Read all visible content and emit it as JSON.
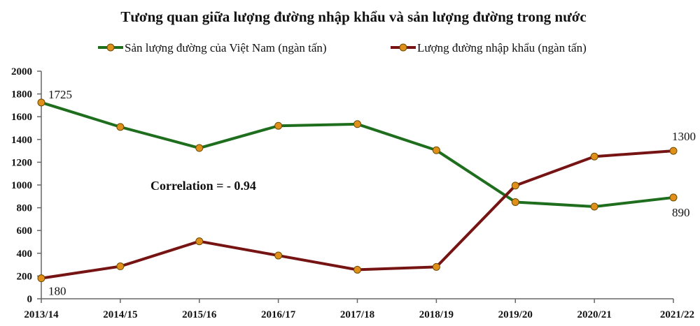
{
  "chart_data": {
    "type": "line",
    "title": "Tương quan  giữa lượng đường nhập khẩu và sản lượng đường trong nước",
    "xlabel": "",
    "ylabel": "",
    "categories": [
      "2013/14",
      "2014/15",
      "2015/16",
      "2016/17",
      "2017/18",
      "2018/19",
      "2019/20",
      "2020/21",
      "2021/22"
    ],
    "ylim": [
      0,
      2000
    ],
    "yticks": [
      0,
      200,
      400,
      600,
      800,
      1000,
      1200,
      1400,
      1600,
      1800,
      2000
    ],
    "grid": false,
    "legend_position": "top",
    "series": [
      {
        "name": "Sản lượng  đường của Việt Nam (ngàn tấn)",
        "color": "#1e6e1e",
        "marker_color": "#e0901a",
        "values": [
          1725,
          1510,
          1325,
          1520,
          1535,
          1305,
          850,
          810,
          890
        ]
      },
      {
        "name": "Lượng  đường nhập khẩu (ngàn tấn)",
        "color": "#761414",
        "marker_color": "#e0901a",
        "values": [
          180,
          285,
          505,
          380,
          255,
          280,
          995,
          1250,
          1300
        ]
      }
    ],
    "data_labels": [
      {
        "series": 0,
        "index": 0,
        "text": "1725"
      },
      {
        "series": 1,
        "index": 0,
        "text": "180"
      },
      {
        "series": 1,
        "index": 8,
        "text": "1300"
      },
      {
        "series": 0,
        "index": 8,
        "text": "890"
      }
    ],
    "annotation": "Correlation  =  - 0.94"
  }
}
